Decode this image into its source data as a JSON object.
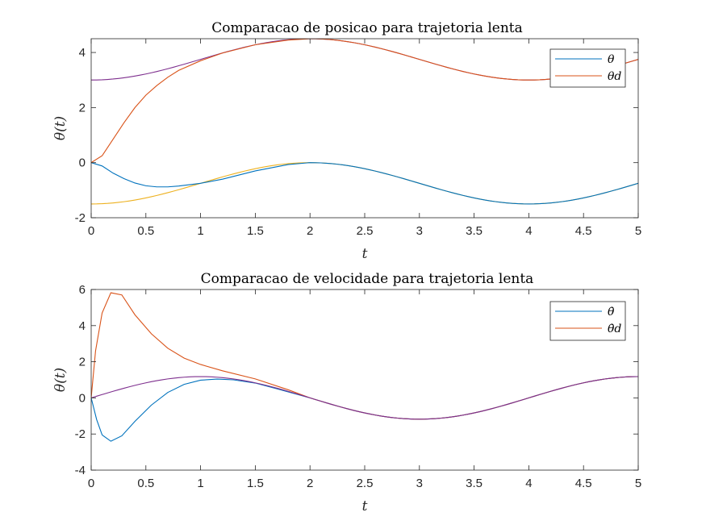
{
  "chart_data": [
    {
      "type": "line",
      "title": "Comparacao de posicao para trajetoria lenta",
      "xlabel": "t",
      "ylabel": "θ(t)",
      "xlim": [
        0,
        5
      ],
      "ylim": [
        -2,
        4.5
      ],
      "xticks": [
        "0",
        "0.5",
        "1",
        "1.5",
        "2",
        "2.5",
        "3",
        "3.5",
        "4",
        "4.5",
        "5"
      ],
      "yticks": [
        "-2",
        "0",
        "2",
        "4"
      ],
      "grid": false,
      "legend": {
        "location": "top-right",
        "entries": [
          "θ",
          "θd"
        ]
      },
      "series": [
        {
          "name": "θ",
          "color": "#0072BD",
          "x": [
            0,
            0.1,
            0.2,
            0.3,
            0.4,
            0.5,
            0.6,
            0.7,
            0.8,
            1.0,
            1.2,
            1.5,
            1.8,
            2.0
          ],
          "y": [
            0,
            -0.12,
            -0.38,
            -0.58,
            -0.74,
            -0.84,
            -0.88,
            -0.88,
            -0.85,
            -0.75,
            -0.6,
            -0.3,
            -0.07,
            0
          ]
        },
        {
          "name": "θd",
          "color": "#D95319",
          "x": [
            0,
            0.1,
            0.2,
            0.3,
            0.4,
            0.5,
            0.6,
            0.7,
            0.8,
            1.0,
            1.2,
            1.5,
            1.8,
            2.0
          ],
          "y": [
            0,
            0.25,
            0.85,
            1.45,
            2.0,
            2.45,
            2.8,
            3.1,
            3.35,
            3.7,
            3.98,
            4.28,
            4.45,
            4.5
          ]
        },
        {
          "color": "#EDB120",
          "x": [],
          "y": []
        },
        {
          "color": "#7E2F8E",
          "x": [],
          "y": []
        }
      ],
      "note_series_3_4": "Trajectories: y = -0.75 - 0.75 cos(pi t / 2) and y = 3.75 - 0.75 cos(pi t / 2)"
    },
    {
      "type": "line",
      "title": "Comparacao de velocidade para trajetoria lenta",
      "xlabel": "t",
      "ylabel": "θ(t)",
      "xlim": [
        0,
        5
      ],
      "ylim": [
        -4,
        6
      ],
      "xticks": [
        "0",
        "0.5",
        "1",
        "1.5",
        "2",
        "2.5",
        "3",
        "3.5",
        "4",
        "4.5",
        "5"
      ],
      "yticks": [
        "-4",
        "-2",
        "0",
        "2",
        "4",
        "6"
      ],
      "grid": false,
      "legend": {
        "location": "top-right",
        "entries": [
          "θ̇",
          "θ̇d"
        ]
      },
      "series": [
        {
          "name": "θ̇",
          "color": "#0072BD",
          "x": [
            0,
            0.05,
            0.1,
            0.18,
            0.28,
            0.4,
            0.55,
            0.7,
            0.85,
            1.0,
            1.15,
            1.3,
            1.5,
            1.7,
            2.0
          ],
          "y": [
            0,
            -1.2,
            -2.05,
            -2.4,
            -2.1,
            -1.3,
            -0.4,
            0.3,
            0.75,
            0.98,
            1.04,
            1.0,
            0.82,
            0.5,
            0
          ]
        },
        {
          "name": "θ̇d",
          "color": "#D95319",
          "x": [
            0,
            0.04,
            0.1,
            0.18,
            0.28,
            0.4,
            0.55,
            0.7,
            0.85,
            1.0,
            1.2,
            1.5,
            1.8,
            2.0
          ],
          "y": [
            0,
            2.6,
            4.7,
            5.82,
            5.7,
            4.6,
            3.55,
            2.75,
            2.2,
            1.85,
            1.5,
            1.05,
            0.45,
            0
          ]
        },
        {
          "color": "#7E2F8E",
          "x": [],
          "y": []
        }
      ],
      "note_series_3": "Trajectory: y = 1.1781 sin(pi t / 2)"
    }
  ]
}
